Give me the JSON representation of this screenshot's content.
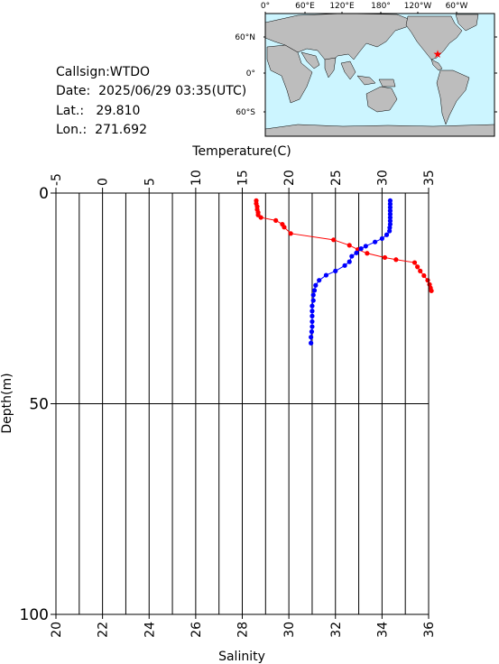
{
  "station": {
    "callsign_label": "Callsign:",
    "callsign": "WTDO",
    "date_label": "Date:",
    "date": "2025/06/29 03:35(UTC)",
    "lat_label": "Lat.:",
    "lat": "29.810",
    "lon_label": "Lon.:",
    "lon": "271.692"
  },
  "map": {
    "top_ticks": [
      "0°",
      "60°E",
      "120°E",
      "180°",
      "120°W",
      "60°W"
    ],
    "left_ticks": [
      "60°N",
      "0°",
      "60°S"
    ],
    "ocean_color": "#ccf5ff",
    "land_color": "#bdbdbd",
    "marker": "red-star",
    "marker_color": "#ff0000"
  },
  "chart_data": {
    "type": "scatter",
    "title": "",
    "top_axis": {
      "label": "Temperature(C)",
      "range": [
        -5,
        35
      ],
      "ticks": [
        "-5",
        "0",
        "5",
        "10",
        "15",
        "20",
        "25",
        "30",
        "35"
      ]
    },
    "bottom_axis": {
      "label": "Salinity",
      "range": [
        20,
        36
      ],
      "ticks": [
        "20",
        "22",
        "24",
        "26",
        "28",
        "30",
        "32",
        "34",
        "36"
      ]
    },
    "y_axis": {
      "label": "Depth(m)",
      "range": [
        0,
        100
      ],
      "inverted": true,
      "ticks": [
        "0",
        "50",
        "100"
      ]
    },
    "grid": true,
    "series": [
      {
        "key": "temperature",
        "axis": "top",
        "color": "#ff0000",
        "points": [
          [
            16.5,
            1.8
          ],
          [
            16.5,
            2.5
          ],
          [
            16.6,
            3.2
          ],
          [
            16.6,
            3.9
          ],
          [
            16.7,
            4.6
          ],
          [
            16.7,
            5.2
          ],
          [
            17.0,
            5.8
          ],
          [
            18.6,
            6.5
          ],
          [
            19.3,
            7.4
          ],
          [
            19.5,
            8.1
          ],
          [
            20.2,
            9.6
          ],
          [
            24.8,
            11.1
          ],
          [
            26.5,
            12.4
          ],
          [
            27.4,
            13.4
          ],
          [
            28.4,
            14.3
          ],
          [
            30.3,
            15.3
          ],
          [
            31.5,
            15.8
          ],
          [
            33.5,
            16.5
          ],
          [
            33.8,
            17.5
          ],
          [
            34.1,
            18.5
          ],
          [
            34.5,
            19.6
          ],
          [
            34.9,
            20.7
          ],
          [
            35.1,
            21.7
          ],
          [
            35.2,
            22.5
          ],
          [
            35.3,
            23.2
          ]
        ]
      },
      {
        "key": "salinity",
        "axis": "bottom",
        "color": "#0000ff",
        "points": [
          [
            34.35,
            1.8
          ],
          [
            34.35,
            2.6
          ],
          [
            34.35,
            3.4
          ],
          [
            34.35,
            4.2
          ],
          [
            34.35,
            5.0
          ],
          [
            34.35,
            5.8
          ],
          [
            34.35,
            6.6
          ],
          [
            34.35,
            7.4
          ],
          [
            34.33,
            8.2
          ],
          [
            34.32,
            9.0
          ],
          [
            34.2,
            9.9
          ],
          [
            34.0,
            10.8
          ],
          [
            33.7,
            11.6
          ],
          [
            33.3,
            12.6
          ],
          [
            33.1,
            13.2
          ],
          [
            32.9,
            14.2
          ],
          [
            32.7,
            15.0
          ],
          [
            32.6,
            16.3
          ],
          [
            32.4,
            17.2
          ],
          [
            32.0,
            18.5
          ],
          [
            31.6,
            19.5
          ],
          [
            31.3,
            20.7
          ],
          [
            31.15,
            21.9
          ],
          [
            31.1,
            23.1
          ],
          [
            31.05,
            24.2
          ],
          [
            31.05,
            25.5
          ],
          [
            31.0,
            26.8
          ],
          [
            31.0,
            28.0
          ],
          [
            31.0,
            29.2
          ],
          [
            31.0,
            30.5
          ],
          [
            31.0,
            31.7
          ],
          [
            30.98,
            32.9
          ],
          [
            30.95,
            34.2
          ],
          [
            30.95,
            35.6
          ]
        ]
      }
    ]
  }
}
